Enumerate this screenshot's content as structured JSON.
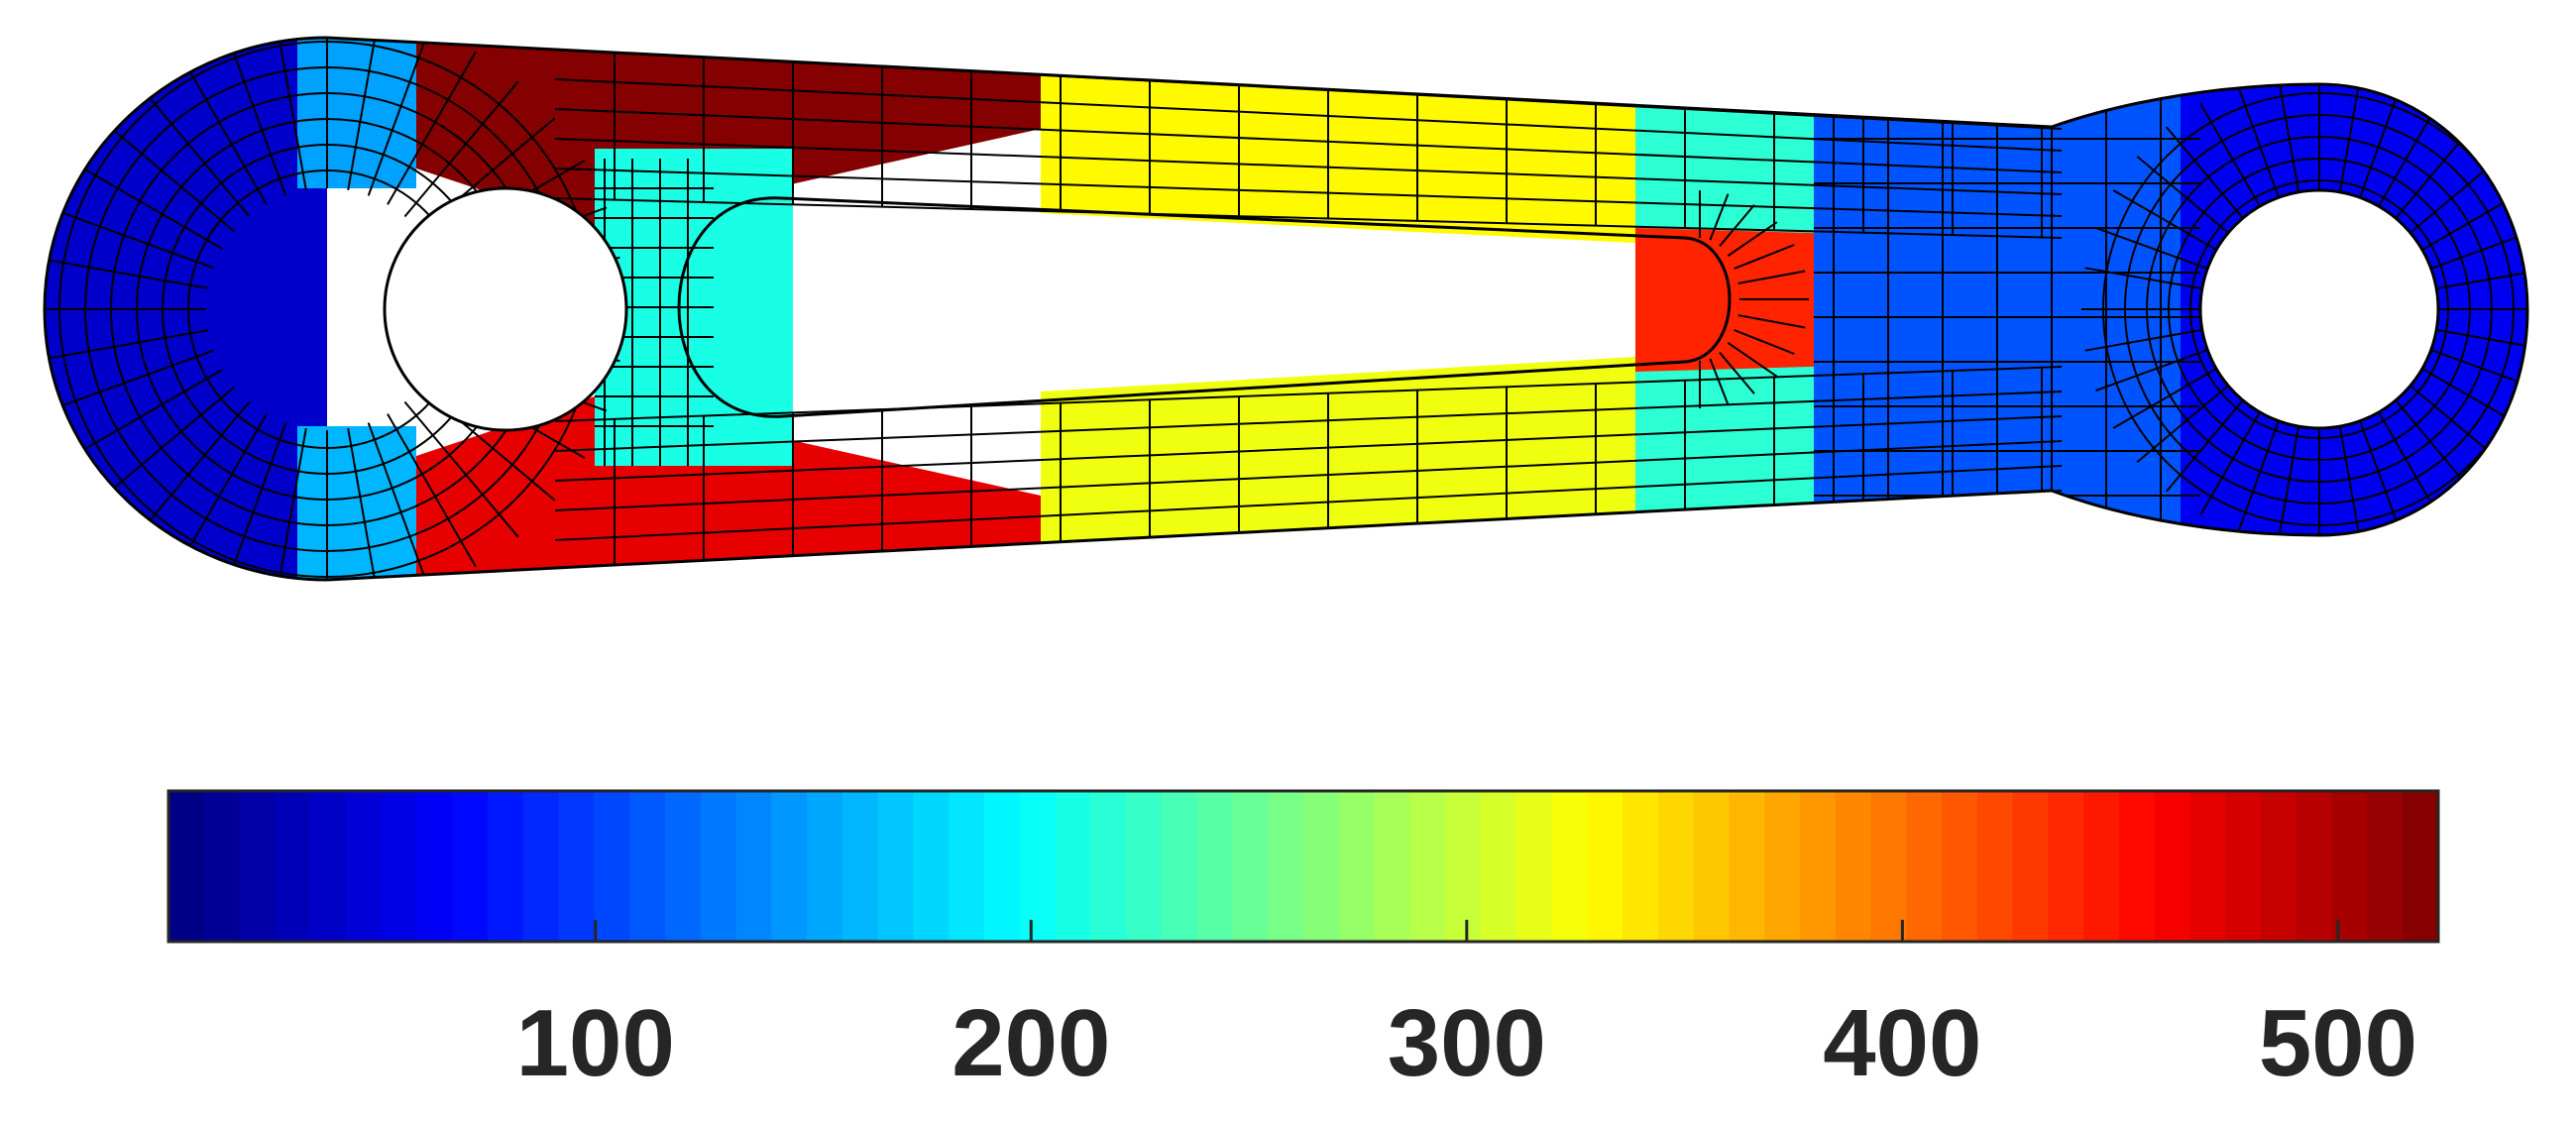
{
  "chart_data": {
    "type": "heatmap",
    "description_kind": "finite-element stress contour on a connecting-rod mesh",
    "colormap": "jet",
    "colorbar": {
      "orientation": "horizontal",
      "placement": "bottom",
      "range": [
        2,
        523
      ],
      "ticks": [
        100,
        200,
        300,
        400,
        500
      ],
      "tick_labels": [
        "100",
        "200",
        "300",
        "400",
        "500"
      ],
      "discrete_levels": 64
    },
    "regions": [
      {
        "name": "big-end-left-cap",
        "value": 40
      },
      {
        "name": "big-end-ring-top",
        "value": 150
      },
      {
        "name": "big-end-ring-bottom",
        "value": 160
      },
      {
        "name": "top-web-hotspot",
        "value": 520
      },
      {
        "name": "bottom-web-hotspot",
        "value": 470
      },
      {
        "name": "top-rail-mid",
        "value": 330
      },
      {
        "name": "bottom-rail-mid",
        "value": 320
      },
      {
        "name": "slot-tip-hotspot",
        "value": 440
      },
      {
        "name": "upper-rail-right",
        "value": 220
      },
      {
        "name": "lower-rail-right",
        "value": 220
      },
      {
        "name": "neck",
        "value": 110
      },
      {
        "name": "small-end",
        "value": 60
      }
    ]
  }
}
